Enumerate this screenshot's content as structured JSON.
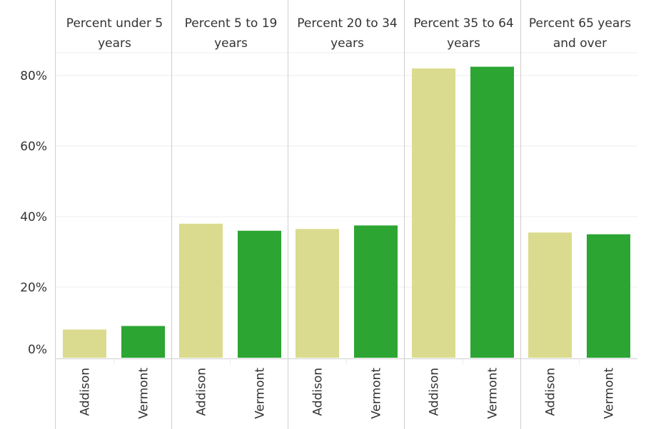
{
  "colors": {
    "addison": "#dadb8e",
    "vermont": "#2ca532",
    "grid": "#ececec",
    "divider": "#cfcfcf",
    "text": "#333333"
  },
  "chart_data": {
    "type": "bar",
    "panels": [
      {
        "title_lines": [
          "Percent under 5",
          "years"
        ],
        "categories": [
          "Addison",
          "Vermont"
        ],
        "values": [
          8.0,
          9.0
        ]
      },
      {
        "title_lines": [
          "Percent 5 to 19",
          "years"
        ],
        "categories": [
          "Addison",
          "Vermont"
        ],
        "values": [
          38.0,
          36.0
        ]
      },
      {
        "title_lines": [
          "Percent 20 to 34",
          "years"
        ],
        "categories": [
          "Addison",
          "Vermont"
        ],
        "values": [
          36.5,
          37.5
        ]
      },
      {
        "title_lines": [
          "Percent 35 to 64",
          "years"
        ],
        "categories": [
          "Addison",
          "Vermont"
        ],
        "values": [
          82.0,
          82.5
        ]
      },
      {
        "title_lines": [
          "Percent 65 years",
          "and over"
        ],
        "categories": [
          "Addison",
          "Vermont"
        ],
        "values": [
          35.5,
          35.0
        ]
      }
    ],
    "y_ticks": [
      "0%",
      "20%",
      "40%",
      "60%",
      "80%"
    ],
    "y_tick_values": [
      0,
      20,
      40,
      60,
      80
    ],
    "ylim": [
      0,
      88
    ],
    "grid": true
  }
}
